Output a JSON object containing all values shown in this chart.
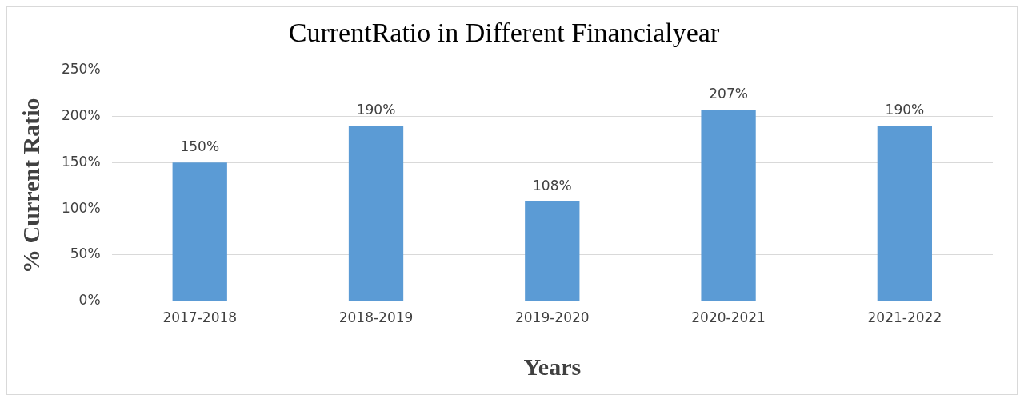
{
  "chart_data": {
    "type": "bar",
    "title": "CurrentRatio in Different Financialyear",
    "xlabel": "Years",
    "ylabel": "% Current Ratio",
    "categories": [
      "2017-2018",
      "2018-2019",
      "2019-2020",
      "2020-2021",
      "2021-2022"
    ],
    "values": [
      150,
      190,
      108,
      207,
      190
    ],
    "color": "#5b9bd5",
    "value_labels": [
      "150%",
      "190%",
      "108%",
      "207%",
      "190%"
    ],
    "ylim": [
      0,
      250
    ],
    "yticks": [
      {
        "value": 0,
        "label": "0%"
      },
      {
        "value": 50,
        "label": "50%"
      },
      {
        "value": 100,
        "label": "100%"
      },
      {
        "value": 150,
        "label": "150%"
      },
      {
        "value": 200,
        "label": "200%"
      },
      {
        "value": 250,
        "label": "250%"
      }
    ],
    "grid": "y",
    "legend": false
  }
}
